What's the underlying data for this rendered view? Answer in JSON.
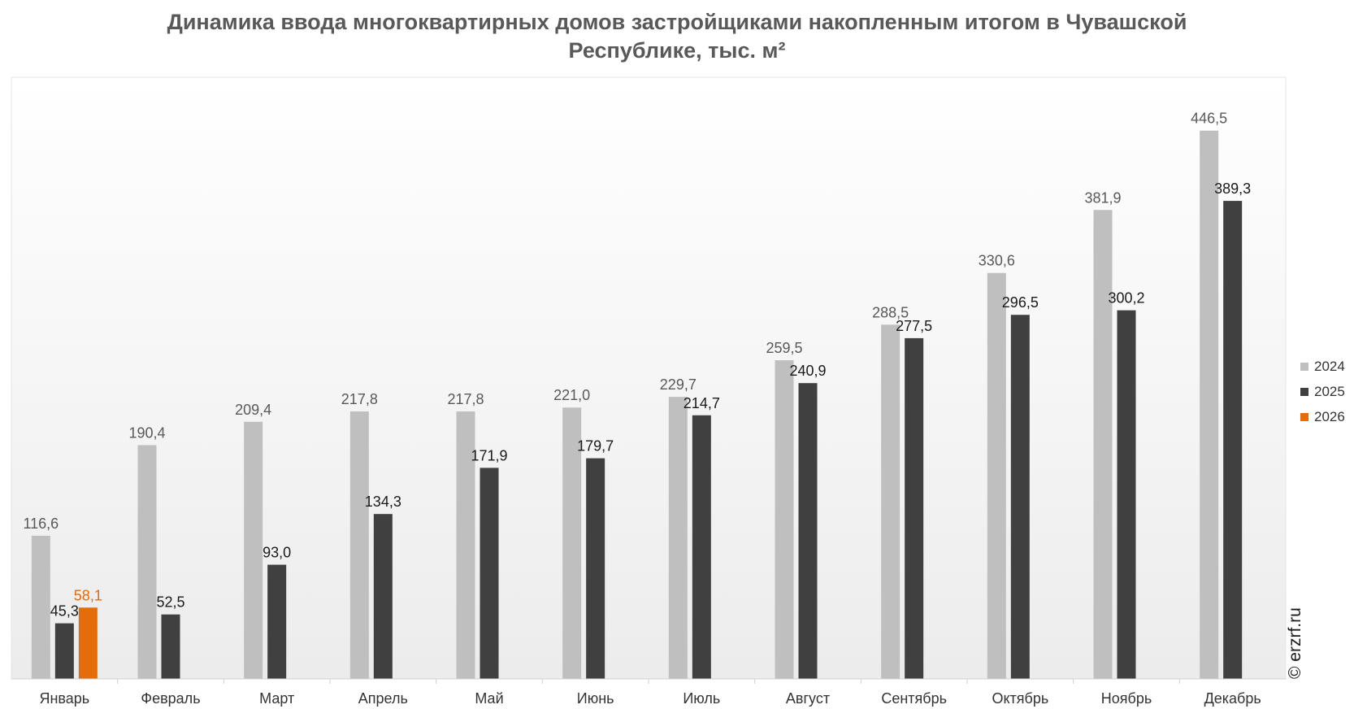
{
  "chart_data": {
    "type": "bar",
    "title": "Динамика ввода многоквартирных домов застройщиками накопленным итогом в Чувашской Республике, тыс. м²",
    "title_lines": [
      "Динамика ввода многоквартирных домов застройщиками накопленным итогом в Чувашской",
      "Республике, тыс. м²"
    ],
    "categories": [
      "Январь",
      "Февраль",
      "Март",
      "Апрель",
      "Май",
      "Июнь",
      "Июль",
      "Август",
      "Сентябрь",
      "Октябрь",
      "Ноябрь",
      "Декабрь"
    ],
    "series": [
      {
        "name": "2024",
        "color": "#bfbfbf",
        "label_color": "#595959",
        "values": [
          116.6,
          190.4,
          209.4,
          217.8,
          217.8,
          221.0,
          229.7,
          259.5,
          288.5,
          330.6,
          381.9,
          446.5
        ],
        "labels": [
          "116,6",
          "190,4",
          "209,4",
          "217,8",
          "217,8",
          "221,0",
          "229,7",
          "259,5",
          "288,5",
          "330,6",
          "381,9",
          "446,5"
        ]
      },
      {
        "name": "2025",
        "color": "#404040",
        "label_color": "#1a1a1a",
        "values": [
          45.3,
          52.5,
          93.0,
          134.3,
          171.9,
          179.7,
          214.7,
          240.9,
          277.5,
          296.5,
          300.2,
          389.3
        ],
        "labels": [
          "45,3",
          "52,5",
          "93,0",
          "134,3",
          "171,9",
          "179,7",
          "214,7",
          "240,9",
          "277,5",
          "296,5",
          "300,2",
          "389,3"
        ]
      },
      {
        "name": "2026",
        "color": "#e46c0a",
        "label_color": "#e46c0a",
        "values": [
          58.1,
          null,
          null,
          null,
          null,
          null,
          null,
          null,
          null,
          null,
          null,
          null
        ],
        "labels": [
          "58,1",
          null,
          null,
          null,
          null,
          null,
          null,
          null,
          null,
          null,
          null,
          null
        ]
      }
    ],
    "ylim": [
      0,
      490
    ],
    "grid": false,
    "legend_position": "right",
    "xlabel": "",
    "ylabel": ""
  },
  "watermark": "© erzrf.ru"
}
